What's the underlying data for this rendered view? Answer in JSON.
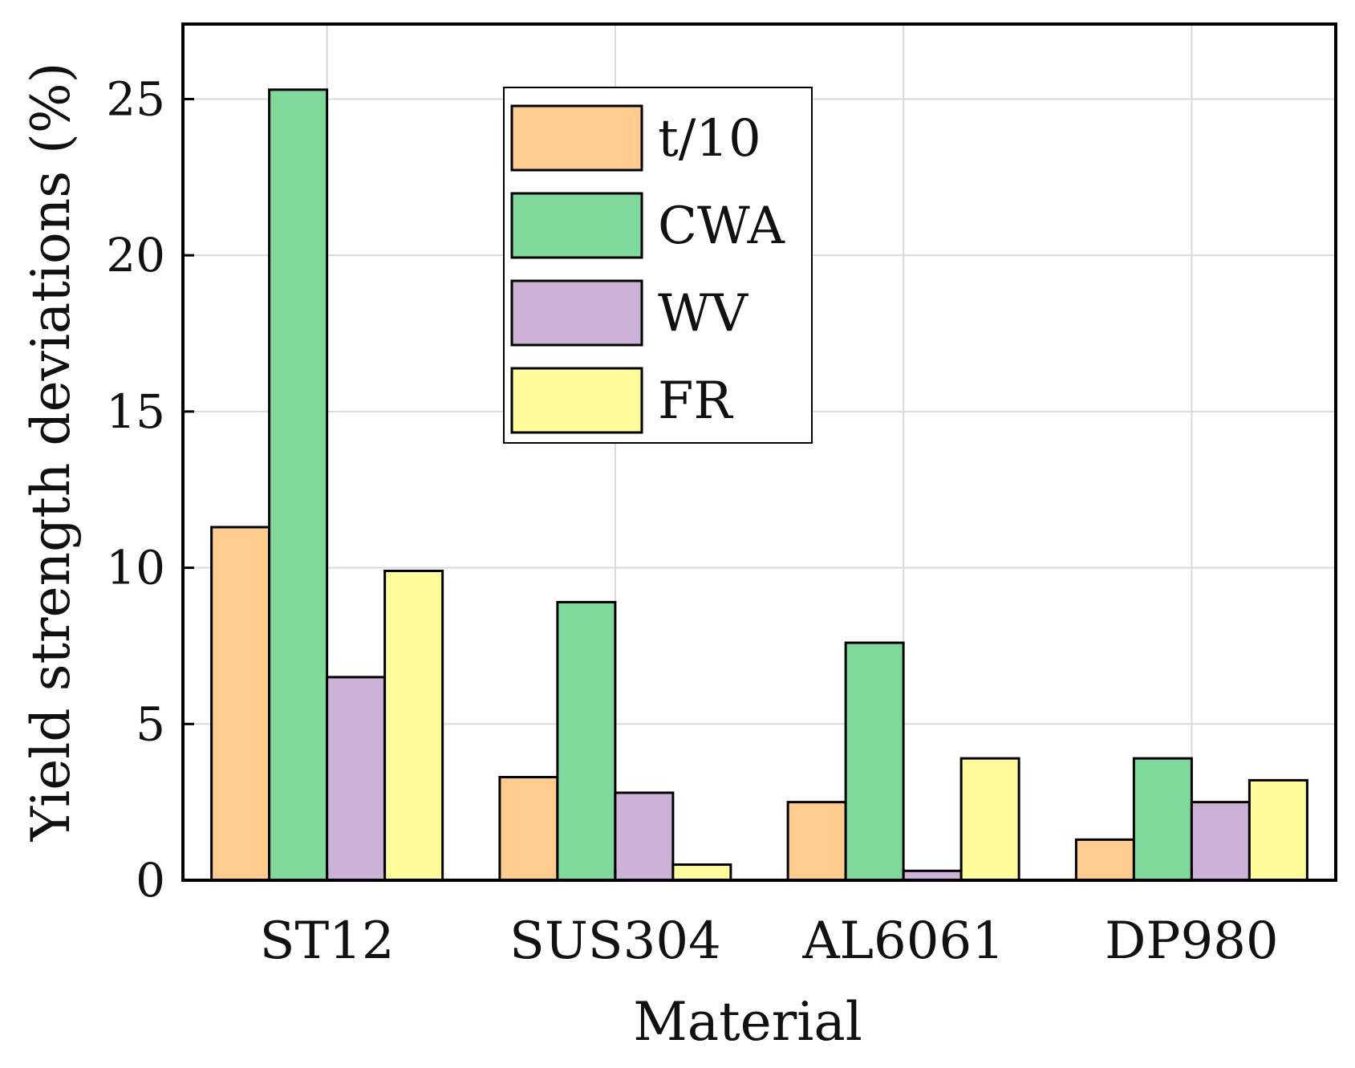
{
  "chart_data": {
    "type": "bar",
    "title": "",
    "xlabel": "Material",
    "ylabel": "Yield strength deviations (%)",
    "categories": [
      "ST12",
      "SUS304",
      "AL6061",
      "DP980"
    ],
    "series": [
      {
        "name": "t/10",
        "color": "#FFCC8F",
        "values": [
          11.3,
          3.3,
          2.5,
          1.3
        ]
      },
      {
        "name": "CWA",
        "color": "#7ED99A",
        "values": [
          25.3,
          8.9,
          7.6,
          3.9
        ]
      },
      {
        "name": "WV",
        "color": "#CDB2D8",
        "values": [
          6.5,
          2.8,
          0.3,
          2.5
        ]
      },
      {
        "name": "FR",
        "color": "#FFFB9A",
        "values": [
          9.9,
          0.5,
          3.9,
          3.2
        ]
      }
    ],
    "ylim": [
      0,
      27.4
    ],
    "yticks": [
      0,
      5,
      10,
      15,
      20,
      25
    ],
    "grid": true,
    "legend_position": "top-center"
  }
}
